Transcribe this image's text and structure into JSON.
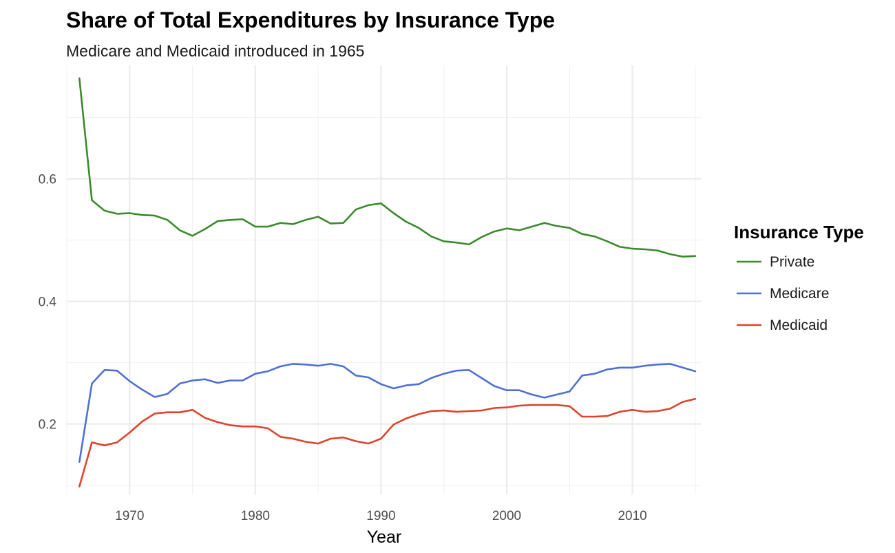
{
  "chart_data": {
    "type": "line",
    "title": "Share of Total Expenditures by Insurance Type",
    "subtitle": "Medicare and Medicaid introduced in 1965",
    "xlabel": "Year",
    "ylabel": "",
    "xlim": [
      1965,
      2015.5
    ],
    "ylim": [
      0.085,
      0.785
    ],
    "x_ticks": [
      1970,
      1980,
      1990,
      2000,
      2010
    ],
    "x_tick_labels": [
      "1970",
      "1980",
      "1990",
      "2000",
      "2010"
    ],
    "x_minor_ticks": [
      1965,
      1975,
      1985,
      1995,
      2005,
      2015
    ],
    "y_ticks": [
      0.2,
      0.4,
      0.6
    ],
    "y_tick_labels": [
      "0.2",
      "0.4",
      "0.6"
    ],
    "y_minor_ticks": [
      0.1,
      0.3,
      0.5,
      0.7
    ],
    "grid": true,
    "legend": {
      "title": "Insurance Type",
      "position": "right"
    },
    "x": [
      1966,
      1967,
      1968,
      1969,
      1970,
      1971,
      1972,
      1973,
      1974,
      1975,
      1976,
      1977,
      1978,
      1979,
      1980,
      1981,
      1982,
      1983,
      1984,
      1985,
      1986,
      1987,
      1988,
      1989,
      1990,
      1991,
      1992,
      1993,
      1994,
      1995,
      1996,
      1997,
      1998,
      1999,
      2000,
      2001,
      2002,
      2003,
      2004,
      2005,
      2006,
      2007,
      2008,
      2009,
      2010,
      2011,
      2012,
      2013,
      2014,
      2015
    ],
    "series": [
      {
        "name": "Private",
        "color": "#3a8a2c",
        "values": [
          0.764,
          0.565,
          0.548,
          0.543,
          0.544,
          0.541,
          0.54,
          0.533,
          0.516,
          0.507,
          0.518,
          0.531,
          0.533,
          0.534,
          0.522,
          0.522,
          0.528,
          0.526,
          0.533,
          0.538,
          0.527,
          0.528,
          0.55,
          0.557,
          0.56,
          0.544,
          0.53,
          0.52,
          0.506,
          0.498,
          0.496,
          0.493,
          0.505,
          0.514,
          0.519,
          0.516,
          0.522,
          0.528,
          0.523,
          0.52,
          0.51,
          0.506,
          0.498,
          0.489,
          0.486,
          0.485,
          0.483,
          0.477,
          0.473,
          0.474
        ]
      },
      {
        "name": "Medicare",
        "color": "#4f6fd4",
        "values": [
          0.138,
          0.266,
          0.288,
          0.287,
          0.27,
          0.256,
          0.244,
          0.249,
          0.266,
          0.271,
          0.273,
          0.267,
          0.271,
          0.271,
          0.282,
          0.286,
          0.294,
          0.298,
          0.297,
          0.295,
          0.298,
          0.294,
          0.279,
          0.276,
          0.265,
          0.258,
          0.263,
          0.265,
          0.275,
          0.282,
          0.287,
          0.288,
          0.275,
          0.262,
          0.255,
          0.255,
          0.248,
          0.243,
          0.248,
          0.253,
          0.279,
          0.282,
          0.289,
          0.292,
          0.292,
          0.295,
          0.297,
          0.298,
          0.292,
          0.286
        ]
      },
      {
        "name": "Medicaid",
        "color": "#dd442c",
        "values": [
          0.098,
          0.17,
          0.165,
          0.17,
          0.186,
          0.204,
          0.217,
          0.219,
          0.219,
          0.223,
          0.21,
          0.203,
          0.198,
          0.196,
          0.196,
          0.193,
          0.179,
          0.176,
          0.171,
          0.168,
          0.176,
          0.178,
          0.172,
          0.168,
          0.176,
          0.199,
          0.209,
          0.216,
          0.221,
          0.222,
          0.22,
          0.221,
          0.222,
          0.226,
          0.227,
          0.23,
          0.231,
          0.231,
          0.231,
          0.229,
          0.212,
          0.212,
          0.213,
          0.22,
          0.223,
          0.22,
          0.221,
          0.225,
          0.236,
          0.241
        ]
      }
    ]
  }
}
